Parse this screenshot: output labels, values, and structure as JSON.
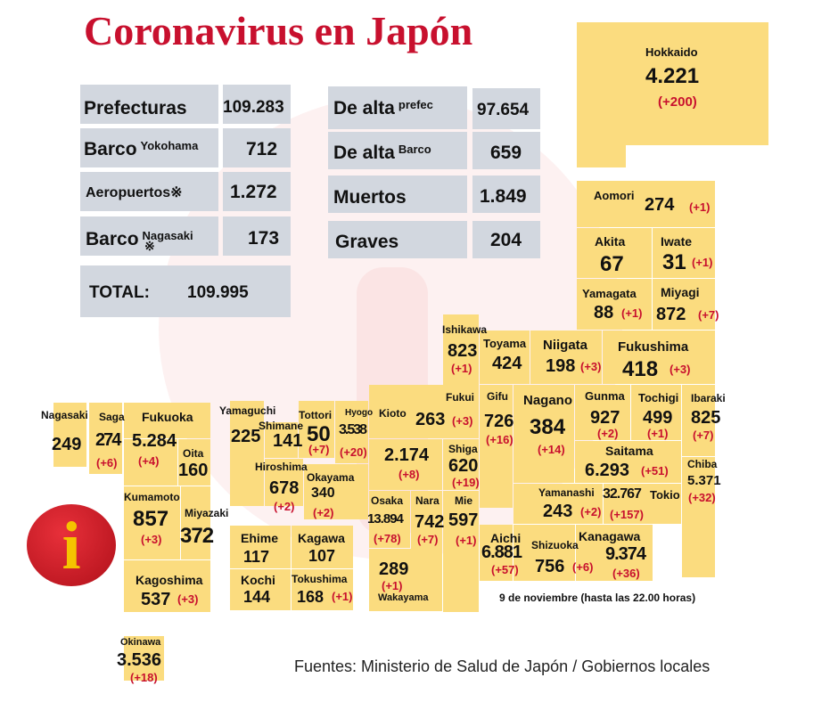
{
  "title": "Coronavirus en Japón",
  "summary": {
    "prefecturas": {
      "label": "Prefecturas",
      "value": "109.283"
    },
    "barco_yokohama": {
      "label": "Barco",
      "sub": "Yokohama",
      "value": "712"
    },
    "aeropuertos": {
      "label": "Aeropuertos※",
      "value": "1.272"
    },
    "barco_nagasaki": {
      "label": "Barco",
      "sub": "Nagasaki",
      "mark": "※",
      "value": "173"
    },
    "total": {
      "label": "TOTAL:",
      "value": "109.995"
    },
    "alta_prefec": {
      "label": "De alta",
      "sub": "prefec",
      "value": "97.654"
    },
    "alta_barco": {
      "label": "De alta",
      "sub": "Barco",
      "value": "659"
    },
    "muertos": {
      "label": "Muertos",
      "value": "1.849"
    },
    "graves": {
      "label": "Graves",
      "value": "204"
    }
  },
  "prefectures": {
    "hokkaido": {
      "name": "Hokkaido",
      "value": "4.221",
      "delta": "(+200)"
    },
    "aomori": {
      "name": "Aomori",
      "value": "274",
      "delta": "(+1)"
    },
    "akita": {
      "name": "Akita",
      "value": "67"
    },
    "iwate": {
      "name": "Iwate",
      "value": "31",
      "delta": "(+1)"
    },
    "yamagata": {
      "name": "Yamagata",
      "value": "88",
      "delta": "(+1)"
    },
    "miyagi": {
      "name": "Miyagi",
      "value": "872",
      "delta": "(+7)"
    },
    "ishikawa": {
      "name": "Ishikawa",
      "value": "823",
      "delta": "(+1)"
    },
    "toyama": {
      "name": "Toyama",
      "value": "424"
    },
    "niigata": {
      "name": "Niigata",
      "value": "198",
      "delta": "(+3)"
    },
    "fukushima": {
      "name": "Fukushima",
      "value": "418",
      "delta": "(+3)"
    },
    "fukui": {
      "name": "Fukui",
      "value": "263",
      "delta": "(+3)"
    },
    "gifu": {
      "name": "Gifu",
      "value": "726",
      "delta": "(+16)"
    },
    "nagano": {
      "name": "Nagano",
      "value": "384",
      "delta": "(+14)"
    },
    "gunma": {
      "name": "Gunma",
      "value": "927",
      "delta": "(+2)"
    },
    "tochigi": {
      "name": "Tochigi",
      "value": "499",
      "delta": "(+1)"
    },
    "ibaraki": {
      "name": "Ibaraki",
      "value": "825",
      "delta": "(+7)"
    },
    "saitama": {
      "name": "Saitama",
      "value": "6.293",
      "delta": "(+51)"
    },
    "chiba": {
      "name": "Chiba",
      "value": "5.371",
      "delta": "(+32)"
    },
    "yamanashi": {
      "name": "Yamanashi",
      "value": "243",
      "delta": "(+2)"
    },
    "tokio": {
      "name": "Tokio",
      "value": "32.767",
      "delta": "(+157)"
    },
    "kanagawa": {
      "name": "Kanagawa",
      "value": "9.374",
      "delta": "(+36)"
    },
    "shizuoka": {
      "name": "Shizuoka",
      "value": "756",
      "delta": "(+6)"
    },
    "aichi": {
      "name": "Aichi",
      "value": "6.881",
      "delta": "(+57)"
    },
    "mie": {
      "name": "Mie",
      "value": "597",
      "delta": "(+1)"
    },
    "shiga": {
      "name": "Shiga",
      "value": "620",
      "delta": "(+19)"
    },
    "kioto": {
      "name": "Kioto",
      "value": "2.174",
      "delta": "(+8)"
    },
    "nara": {
      "name": "Nara",
      "value": "742",
      "delta": "(+7)"
    },
    "osaka": {
      "name": "Osaka",
      "value": "13.894",
      "delta": "(+78)"
    },
    "hyogo": {
      "name": "Hyogo",
      "value": "3.538",
      "delta": "(+20)"
    },
    "wakayama": {
      "name": "Wakayama",
      "value": "289",
      "delta": "(+1)"
    },
    "tottori": {
      "name": "Tottori",
      "value": "50",
      "delta": "(+7)"
    },
    "shimane": {
      "name": "Shimane",
      "value": "141"
    },
    "okayama": {
      "name": "Okayama",
      "value": "340",
      "delta": "(+2)"
    },
    "hiroshima": {
      "name": "Hiroshima",
      "value": "678",
      "delta": "(+2)"
    },
    "yamaguchi": {
      "name": "Yamaguchi",
      "value": "225"
    },
    "ehime": {
      "name": "Ehime",
      "value": "117"
    },
    "kagawa": {
      "name": "Kagawa",
      "value": "107"
    },
    "kochi": {
      "name": "Kochi",
      "value": "144"
    },
    "tokushima": {
      "name": "Tokushima",
      "value": "168",
      "delta": "(+1)"
    },
    "nagasaki": {
      "name": "Nagasaki",
      "value": "249"
    },
    "saga": {
      "name": "Saga",
      "value": "274",
      "delta": "(+6)"
    },
    "fukuoka": {
      "name": "Fukuoka",
      "value": "5.284",
      "delta": "(+4)"
    },
    "oita": {
      "name": "Oita",
      "value": "160"
    },
    "kumamoto": {
      "name": "Kumamoto",
      "value": "857",
      "delta": "(+3)"
    },
    "miyazaki": {
      "name": "Miyazaki",
      "value": "372"
    },
    "kagoshima": {
      "name": "Kagoshima",
      "value": "537",
      "delta": "(+3)"
    },
    "okinawa": {
      "name": "Okinawa",
      "value": "3.536",
      "delta": "(+18)"
    }
  },
  "note": "9 de noviembre  (hasta las 22.00 horas)",
  "source": "Fuentes: Ministerio de Salud de Japón / Gobiernos locales",
  "info_icon": {
    "glyph": "i"
  },
  "colors": {
    "title": "#c8102e",
    "cell": "#fbdc7f",
    "summary_box": "#d2d7df",
    "delta": "#c8102e"
  }
}
